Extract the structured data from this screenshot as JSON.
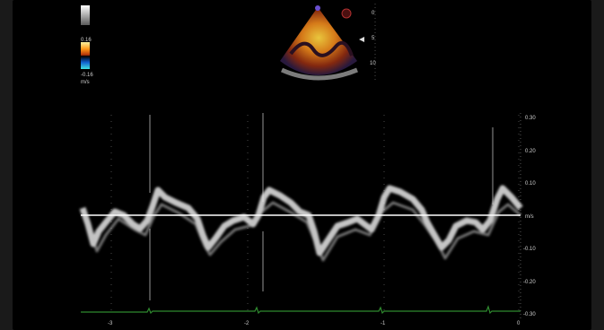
{
  "color_scale": {
    "max_label": "0.16",
    "min_label": "-0.16",
    "unit": "m/s"
  },
  "depth_scale": {
    "ticks": [
      "0",
      "5",
      "10"
    ]
  },
  "velocity_axis": {
    "ticks": [
      "0.30",
      "0.20",
      "0.10",
      "m/s",
      "-0.10",
      "-0.20",
      "-0.30"
    ]
  },
  "time_axis": {
    "ticks": [
      "-3",
      "-2",
      "-1",
      "0"
    ]
  },
  "colors": {
    "background": "#000000",
    "waveform": "#e8e8e8",
    "baseline": "#ffffff",
    "ecg": "#2f8a2f",
    "sector_warm": "#e08a1e"
  }
}
